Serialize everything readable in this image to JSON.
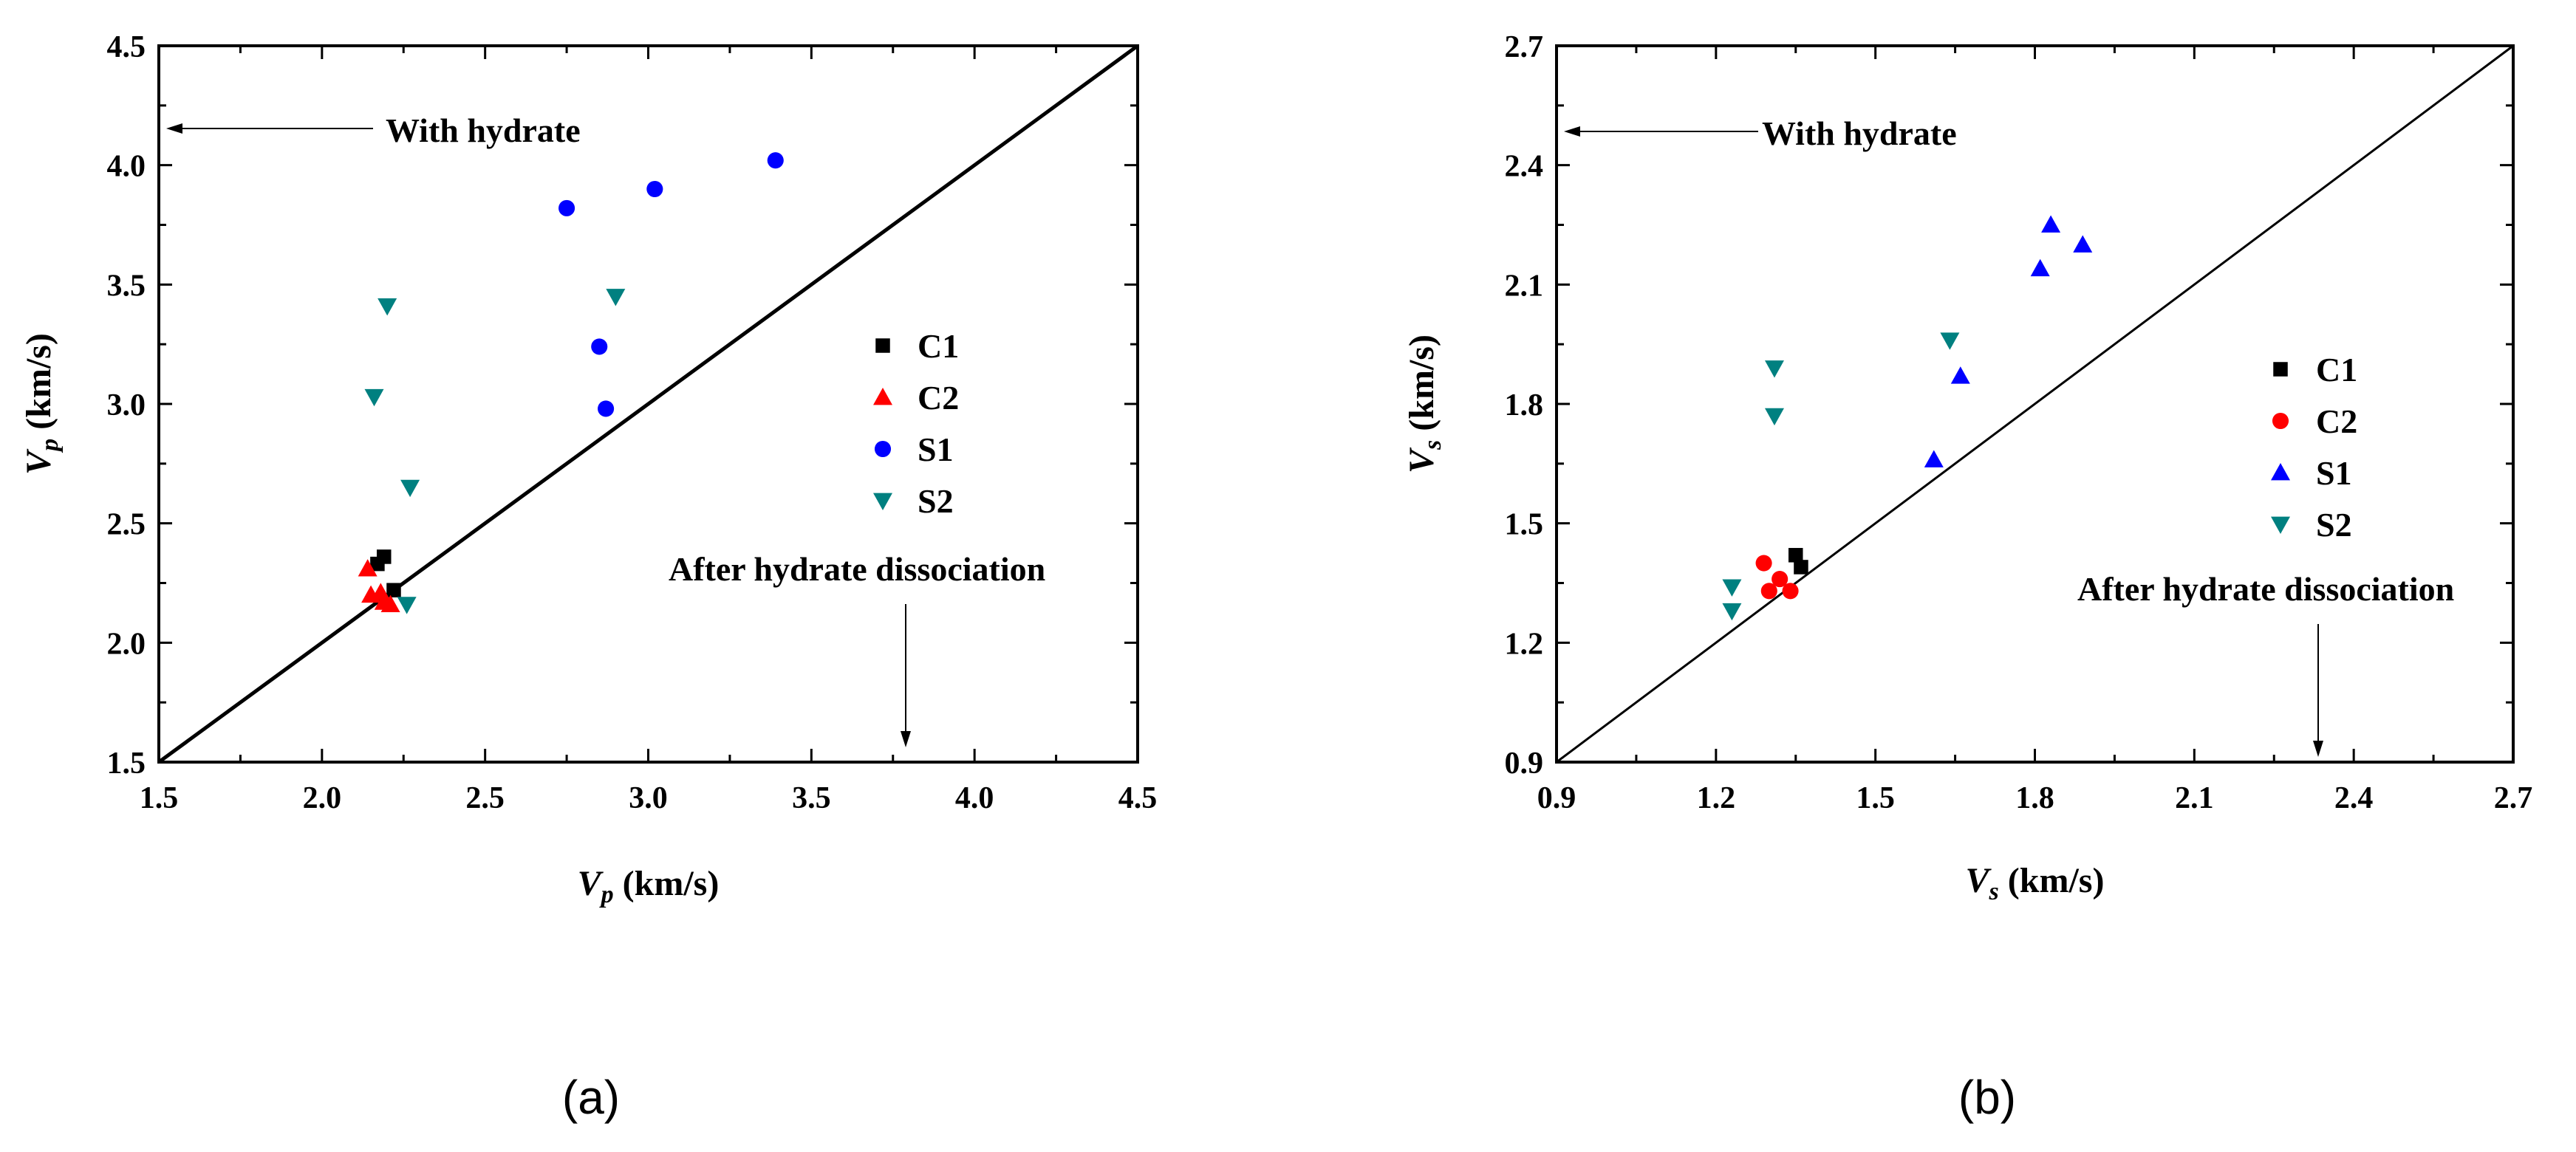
{
  "chart_data": [
    {
      "id": "a",
      "type": "scatter",
      "caption": "(a)",
      "xlabel_main": "V",
      "xlabel_sub": "p",
      "xlabel_unit": " (km/s)",
      "ylabel_main": "V",
      "ylabel_sub": "p",
      "ylabel_unit": " (km/s)",
      "xlim": [
        1.5,
        4.5
      ],
      "ylim": [
        1.5,
        4.5
      ],
      "xticks": [
        1.5,
        2.0,
        2.5,
        3.0,
        3.5,
        4.0,
        4.5
      ],
      "yticks": [
        1.5,
        2.0,
        2.5,
        3.0,
        3.5,
        4.0,
        4.5
      ],
      "tick_labels": [
        "1.5",
        "2.0",
        "2.5",
        "3.0",
        "3.5",
        "4.0",
        "4.5"
      ],
      "reference_line": "y = x",
      "annotations": {
        "with_hydrate": "With hydrate",
        "after_dissociation": "After hydrate dissociation"
      },
      "series": [
        {
          "name": "C1",
          "marker": "square",
          "color": "#000000",
          "points": [
            [
              2.17,
              2.33
            ],
            [
              2.19,
              2.36
            ],
            [
              2.22,
              2.22
            ]
          ]
        },
        {
          "name": "C2",
          "marker": "triangle-up",
          "color": "#ff0000",
          "points": [
            [
              2.14,
              2.31
            ],
            [
              2.15,
              2.2
            ],
            [
              2.18,
              2.21
            ],
            [
              2.19,
              2.17
            ],
            [
              2.21,
              2.16
            ]
          ]
        },
        {
          "name": "S1",
          "marker": "circle",
          "color": "#0000ff",
          "points": [
            [
              2.75,
              3.82
            ],
            [
              3.02,
              3.9
            ],
            [
              3.39,
              4.02
            ],
            [
              2.85,
              3.24
            ],
            [
              2.87,
              2.98
            ]
          ]
        },
        {
          "name": "S2",
          "marker": "triangle-down",
          "color": "#008080",
          "points": [
            [
              2.2,
              3.41
            ],
            [
              2.16,
              3.03
            ],
            [
              2.27,
              2.65
            ],
            [
              2.9,
              3.45
            ],
            [
              2.26,
              2.16
            ]
          ]
        }
      ]
    },
    {
      "id": "b",
      "type": "scatter",
      "caption": "(b)",
      "xlabel_main": "V",
      "xlabel_sub": "s",
      "xlabel_unit": " (km/s)",
      "ylabel_main": "V",
      "ylabel_sub": "s",
      "ylabel_unit": " (km/s)",
      "xlim": [
        0.9,
        2.7
      ],
      "ylim": [
        0.9,
        2.7
      ],
      "xticks": [
        0.9,
        1.2,
        1.5,
        1.8,
        2.1,
        2.4,
        2.7
      ],
      "yticks": [
        0.9,
        1.2,
        1.5,
        1.8,
        2.1,
        2.4,
        2.7
      ],
      "tick_labels": [
        "0.9",
        "1.2",
        "1.5",
        "1.8",
        "2.1",
        "2.4",
        "2.7"
      ],
      "reference_line": "y = x",
      "annotations": {
        "with_hydrate": "With hydrate",
        "after_dissociation": "After hydrate dissociation"
      },
      "series": [
        {
          "name": "C1",
          "marker": "square",
          "color": "#000000",
          "points": [
            [
              1.35,
              1.42
            ],
            [
              1.36,
              1.39
            ]
          ]
        },
        {
          "name": "C2",
          "marker": "circle",
          "color": "#ff0000",
          "points": [
            [
              1.29,
              1.4
            ],
            [
              1.3,
              1.33
            ],
            [
              1.32,
              1.36
            ],
            [
              1.34,
              1.33
            ]
          ]
        },
        {
          "name": "S1",
          "marker": "triangle-up",
          "color": "#0000ff",
          "points": [
            [
              1.61,
              1.66
            ],
            [
              1.66,
              1.87
            ],
            [
              1.81,
              2.14
            ],
            [
              1.83,
              2.25
            ],
            [
              1.89,
              2.2
            ]
          ]
        },
        {
          "name": "S2",
          "marker": "triangle-down",
          "color": "#008080",
          "points": [
            [
              1.23,
              1.34
            ],
            [
              1.23,
              1.28
            ],
            [
              1.31,
              1.89
            ],
            [
              1.31,
              1.77
            ],
            [
              1.64,
              1.96
            ]
          ]
        }
      ]
    }
  ]
}
